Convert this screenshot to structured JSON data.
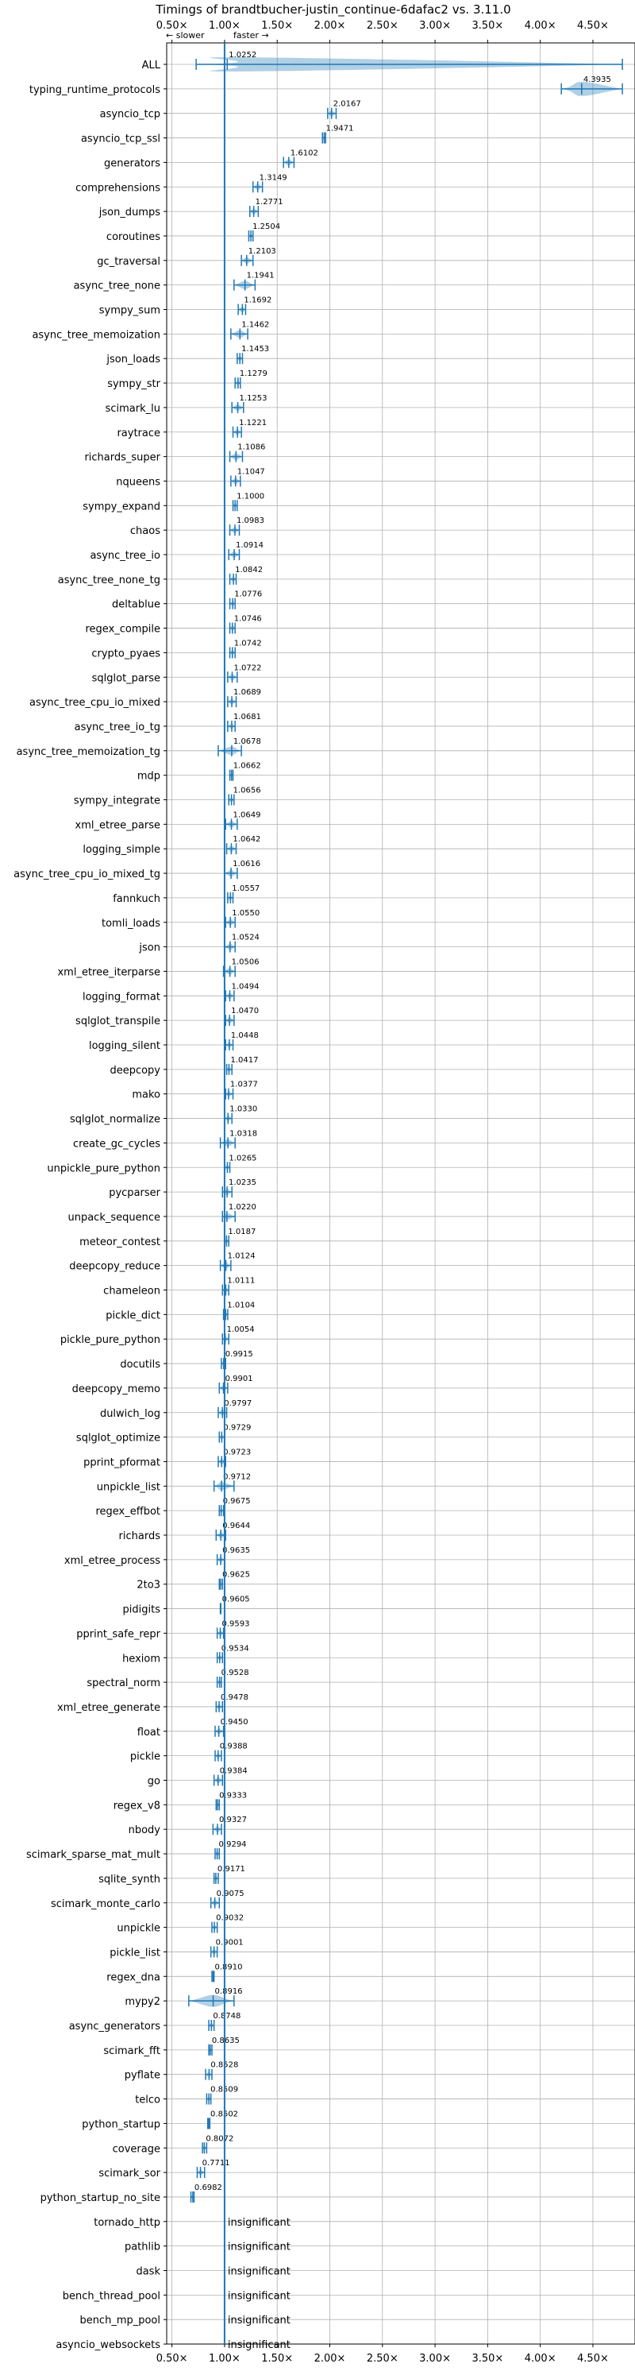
{
  "chart_data": {
    "type": "violin",
    "title": "Timings of brandtbucher-justin_continue-6dafac2 vs. 3.11.0",
    "direction_slower": "← slower",
    "direction_faster": "faster →",
    "xlabel": "",
    "ylabel": "",
    "xlim": [
      0.45,
      4.9
    ],
    "x_ticks": [
      0.5,
      1.0,
      1.5,
      2.0,
      2.5,
      3.0,
      3.5,
      4.0,
      4.5
    ],
    "x_tick_labels": [
      "0.50×",
      "1.00×",
      "1.50×",
      "2.00×",
      "2.50×",
      "3.00×",
      "3.50×",
      "4.00×",
      "4.50×"
    ],
    "grid": true,
    "insignificant_label": "insignificant",
    "colors": {
      "violin": "#1f77b4",
      "median": "#d62728",
      "reference": "#1f77b4",
      "grid": "#b0b0b0",
      "axis": "#000000"
    },
    "benchmarks": [
      {
        "name": "ALL",
        "value": 1.0252,
        "label": "1.0252",
        "low": 0.73,
        "high": 4.78
      },
      {
        "name": "typing_runtime_protocols",
        "value": 4.3935,
        "label": "4.3935",
        "low": 4.2,
        "high": 4.78
      },
      {
        "name": "asyncio_tcp",
        "value": 2.0167,
        "label": "2.0167",
        "low": 1.98,
        "high": 2.06
      },
      {
        "name": "asyncio_tcp_ssl",
        "value": 1.9471,
        "label": "1.9471",
        "low": 1.93,
        "high": 1.96
      },
      {
        "name": "generators",
        "value": 1.6102,
        "label": "1.6102",
        "low": 1.56,
        "high": 1.66
      },
      {
        "name": "comprehensions",
        "value": 1.3149,
        "label": "1.3149",
        "low": 1.27,
        "high": 1.36
      },
      {
        "name": "json_dumps",
        "value": 1.2771,
        "label": "1.2771",
        "low": 1.24,
        "high": 1.32
      },
      {
        "name": "coroutines",
        "value": 1.2504,
        "label": "1.2504",
        "low": 1.23,
        "high": 1.27
      },
      {
        "name": "gc_traversal",
        "value": 1.2103,
        "label": "1.2103",
        "low": 1.16,
        "high": 1.27
      },
      {
        "name": "async_tree_none",
        "value": 1.1941,
        "label": "1.1941",
        "low": 1.09,
        "high": 1.29
      },
      {
        "name": "sympy_sum",
        "value": 1.1692,
        "label": "1.1692",
        "low": 1.13,
        "high": 1.2
      },
      {
        "name": "async_tree_memoization",
        "value": 1.1462,
        "label": "1.1462",
        "low": 1.06,
        "high": 1.22
      },
      {
        "name": "json_loads",
        "value": 1.1453,
        "label": "1.1453",
        "low": 1.12,
        "high": 1.17
      },
      {
        "name": "sympy_str",
        "value": 1.1279,
        "label": "1.1279",
        "low": 1.1,
        "high": 1.15
      },
      {
        "name": "scimark_lu",
        "value": 1.1253,
        "label": "1.1253",
        "low": 1.07,
        "high": 1.18
      },
      {
        "name": "raytrace",
        "value": 1.1221,
        "label": "1.1221",
        "low": 1.08,
        "high": 1.16
      },
      {
        "name": "richards_super",
        "value": 1.1086,
        "label": "1.1086",
        "low": 1.05,
        "high": 1.17
      },
      {
        "name": "nqueens",
        "value": 1.1047,
        "label": "1.1047",
        "low": 1.06,
        "high": 1.15
      },
      {
        "name": "sympy_expand",
        "value": 1.1,
        "label": "1.1000",
        "low": 1.08,
        "high": 1.12
      },
      {
        "name": "chaos",
        "value": 1.0983,
        "label": "1.0983",
        "low": 1.05,
        "high": 1.14
      },
      {
        "name": "async_tree_io",
        "value": 1.0914,
        "label": "1.0914",
        "low": 1.04,
        "high": 1.14
      },
      {
        "name": "async_tree_none_tg",
        "value": 1.0842,
        "label": "1.0842",
        "low": 1.05,
        "high": 1.11
      },
      {
        "name": "deltablue",
        "value": 1.0776,
        "label": "1.0776",
        "low": 1.05,
        "high": 1.1
      },
      {
        "name": "regex_compile",
        "value": 1.0746,
        "label": "1.0746",
        "low": 1.05,
        "high": 1.1
      },
      {
        "name": "crypto_pyaes",
        "value": 1.0742,
        "label": "1.0742",
        "low": 1.05,
        "high": 1.1
      },
      {
        "name": "sqlglot_parse",
        "value": 1.0722,
        "label": "1.0722",
        "low": 1.03,
        "high": 1.12
      },
      {
        "name": "async_tree_cpu_io_mixed",
        "value": 1.0689,
        "label": "1.0689",
        "low": 1.03,
        "high": 1.11
      },
      {
        "name": "async_tree_io_tg",
        "value": 1.0681,
        "label": "1.0681",
        "low": 1.03,
        "high": 1.1
      },
      {
        "name": "async_tree_memoization_tg",
        "value": 1.0678,
        "label": "1.0678",
        "low": 0.94,
        "high": 1.16
      },
      {
        "name": "mdp",
        "value": 1.0662,
        "label": "1.0662",
        "low": 1.05,
        "high": 1.08
      },
      {
        "name": "sympy_integrate",
        "value": 1.0656,
        "label": "1.0656",
        "low": 1.04,
        "high": 1.09
      },
      {
        "name": "xml_etree_parse",
        "value": 1.0649,
        "label": "1.0649",
        "low": 1.01,
        "high": 1.12
      },
      {
        "name": "logging_simple",
        "value": 1.0642,
        "label": "1.0642",
        "low": 1.02,
        "high": 1.11
      },
      {
        "name": "async_tree_cpu_io_mixed_tg",
        "value": 1.0616,
        "label": "1.0616",
        "low": 1.0,
        "high": 1.12
      },
      {
        "name": "fannkuch",
        "value": 1.0557,
        "label": "1.0557",
        "low": 1.03,
        "high": 1.08
      },
      {
        "name": "tomli_loads",
        "value": 1.055,
        "label": "1.0550",
        "low": 1.01,
        "high": 1.1
      },
      {
        "name": "json",
        "value": 1.0524,
        "label": "1.0524",
        "low": 1.0,
        "high": 1.1
      },
      {
        "name": "xml_etree_iterparse",
        "value": 1.0506,
        "label": "1.0506",
        "low": 0.99,
        "high": 1.1
      },
      {
        "name": "logging_format",
        "value": 1.0494,
        "label": "1.0494",
        "low": 1.01,
        "high": 1.09
      },
      {
        "name": "sqlglot_transpile",
        "value": 1.047,
        "label": "1.0470",
        "low": 1.01,
        "high": 1.09
      },
      {
        "name": "logging_silent",
        "value": 1.0448,
        "label": "1.0448",
        "low": 1.01,
        "high": 1.08
      },
      {
        "name": "deepcopy",
        "value": 1.0417,
        "label": "1.0417",
        "low": 1.02,
        "high": 1.07
      },
      {
        "name": "mako",
        "value": 1.0377,
        "label": "1.0377",
        "low": 1.01,
        "high": 1.08
      },
      {
        "name": "sqlglot_normalize",
        "value": 1.033,
        "label": "1.0330",
        "low": 1.0,
        "high": 1.07
      },
      {
        "name": "create_gc_cycles",
        "value": 1.0318,
        "label": "1.0318",
        "low": 0.96,
        "high": 1.1
      },
      {
        "name": "unpickle_pure_python",
        "value": 1.0265,
        "label": "1.0265",
        "low": 1.0,
        "high": 1.05
      },
      {
        "name": "pycparser",
        "value": 1.0235,
        "label": "1.0235",
        "low": 0.98,
        "high": 1.07
      },
      {
        "name": "unpack_sequence",
        "value": 1.022,
        "label": "1.0220",
        "low": 0.98,
        "high": 1.1
      },
      {
        "name": "meteor_contest",
        "value": 1.0187,
        "label": "1.0187",
        "low": 1.0,
        "high": 1.04
      },
      {
        "name": "deepcopy_reduce",
        "value": 1.0124,
        "label": "1.0124",
        "low": 0.96,
        "high": 1.06
      },
      {
        "name": "chameleon",
        "value": 1.0111,
        "label": "1.0111",
        "low": 0.98,
        "high": 1.04
      },
      {
        "name": "pickle_dict",
        "value": 1.0104,
        "label": "1.0104",
        "low": 0.99,
        "high": 1.03
      },
      {
        "name": "pickle_pure_python",
        "value": 1.0054,
        "label": "1.0054",
        "low": 0.98,
        "high": 1.04
      },
      {
        "name": "docutils",
        "value": 0.9915,
        "label": "0.9915",
        "low": 0.97,
        "high": 1.01
      },
      {
        "name": "deepcopy_memo",
        "value": 0.9901,
        "label": "0.9901",
        "low": 0.95,
        "high": 1.03
      },
      {
        "name": "dulwich_log",
        "value": 0.9797,
        "label": "0.9797",
        "low": 0.94,
        "high": 1.02
      },
      {
        "name": "sqlglot_optimize",
        "value": 0.9729,
        "label": "0.9729",
        "low": 0.95,
        "high": 1.0
      },
      {
        "name": "pprint_pformat",
        "value": 0.9723,
        "label": "0.9723",
        "low": 0.94,
        "high": 1.01
      },
      {
        "name": "unpickle_list",
        "value": 0.9712,
        "label": "0.9712",
        "low": 0.9,
        "high": 1.09
      },
      {
        "name": "regex_effbot",
        "value": 0.9675,
        "label": "0.9675",
        "low": 0.95,
        "high": 0.99
      },
      {
        "name": "richards",
        "value": 0.9644,
        "label": "0.9644",
        "low": 0.92,
        "high": 1.01
      },
      {
        "name": "xml_etree_process",
        "value": 0.9635,
        "label": "0.9635",
        "low": 0.93,
        "high": 1.0
      },
      {
        "name": "2to3",
        "value": 0.9625,
        "label": "0.9625",
        "low": 0.95,
        "high": 0.98
      },
      {
        "name": "pidigits",
        "value": 0.9605,
        "label": "0.9605",
        "low": 0.96,
        "high": 0.965
      },
      {
        "name": "pprint_safe_repr",
        "value": 0.9593,
        "label": "0.9593",
        "low": 0.93,
        "high": 0.99
      },
      {
        "name": "hexiom",
        "value": 0.9534,
        "label": "0.9534",
        "low": 0.93,
        "high": 0.98
      },
      {
        "name": "spectral_norm",
        "value": 0.9528,
        "label": "0.9528",
        "low": 0.93,
        "high": 0.97
      },
      {
        "name": "xml_etree_generate",
        "value": 0.9478,
        "label": "0.9478",
        "low": 0.92,
        "high": 0.98
      },
      {
        "name": "float",
        "value": 0.945,
        "label": "0.9450",
        "low": 0.91,
        "high": 0.99
      },
      {
        "name": "pickle",
        "value": 0.9388,
        "label": "0.9388",
        "low": 0.91,
        "high": 0.97
      },
      {
        "name": "go",
        "value": 0.9384,
        "label": "0.9384",
        "low": 0.9,
        "high": 0.98
      },
      {
        "name": "regex_v8",
        "value": 0.9333,
        "label": "0.9333",
        "low": 0.92,
        "high": 0.95
      },
      {
        "name": "nbody",
        "value": 0.9327,
        "label": "0.9327",
        "low": 0.89,
        "high": 0.97
      },
      {
        "name": "scimark_sparse_mat_mult",
        "value": 0.9294,
        "label": "0.9294",
        "low": 0.91,
        "high": 0.95
      },
      {
        "name": "sqlite_synth",
        "value": 0.9171,
        "label": "0.9171",
        "low": 0.9,
        "high": 0.94
      },
      {
        "name": "scimark_monte_carlo",
        "value": 0.9075,
        "label": "0.9075",
        "low": 0.87,
        "high": 0.95
      },
      {
        "name": "unpickle",
        "value": 0.9032,
        "label": "0.9032",
        "low": 0.88,
        "high": 0.93
      },
      {
        "name": "pickle_list",
        "value": 0.9001,
        "label": "0.9001",
        "low": 0.87,
        "high": 0.93
      },
      {
        "name": "regex_dna",
        "value": 0.891,
        "label": "0.8910",
        "low": 0.88,
        "high": 0.9
      },
      {
        "name": "mypy2",
        "value": 0.8916,
        "label": "0.8916",
        "low": 0.66,
        "high": 1.09
      },
      {
        "name": "async_generators",
        "value": 0.8748,
        "label": "0.8748",
        "low": 0.85,
        "high": 0.9
      },
      {
        "name": "scimark_fft",
        "value": 0.8635,
        "label": "0.8635",
        "low": 0.85,
        "high": 0.88
      },
      {
        "name": "pyflate",
        "value": 0.8528,
        "label": "0.8528",
        "low": 0.82,
        "high": 0.88
      },
      {
        "name": "telco",
        "value": 0.8509,
        "label": "0.8509",
        "low": 0.83,
        "high": 0.87
      },
      {
        "name": "python_startup",
        "value": 0.8502,
        "label": "0.8502",
        "low": 0.84,
        "high": 0.86
      },
      {
        "name": "coverage",
        "value": 0.8072,
        "label": "0.8072",
        "low": 0.79,
        "high": 0.83
      },
      {
        "name": "scimark_sor",
        "value": 0.7711,
        "label": "0.7711",
        "low": 0.74,
        "high": 0.81
      },
      {
        "name": "python_startup_no_site",
        "value": 0.6982,
        "label": "0.6982",
        "low": 0.68,
        "high": 0.71
      },
      {
        "name": "tornado_http",
        "value": null,
        "label": "insignificant"
      },
      {
        "name": "pathlib",
        "value": null,
        "label": "insignificant"
      },
      {
        "name": "dask",
        "value": null,
        "label": "insignificant"
      },
      {
        "name": "bench_thread_pool",
        "value": null,
        "label": "insignificant"
      },
      {
        "name": "bench_mp_pool",
        "value": null,
        "label": "insignificant"
      },
      {
        "name": "asyncio_websockets",
        "value": null,
        "label": "insignificant"
      }
    ]
  }
}
